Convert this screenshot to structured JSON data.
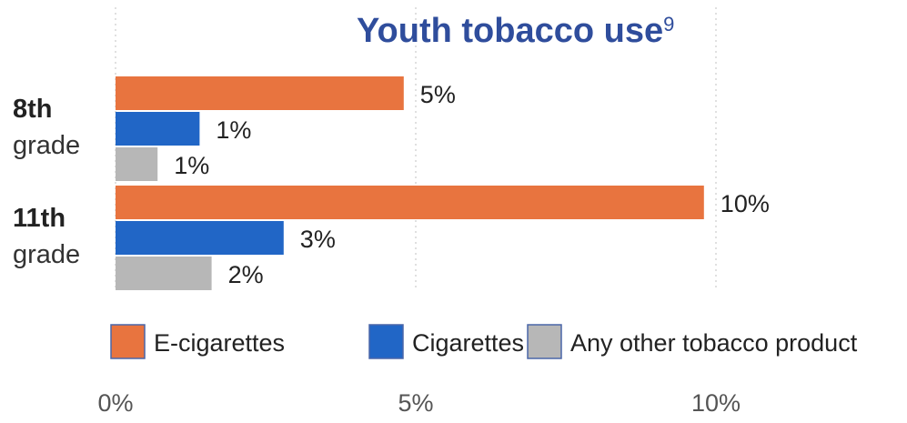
{
  "chart_data": {
    "type": "bar",
    "orientation": "horizontal",
    "title": "Youth tobacco use",
    "title_superscript": "9",
    "categories": [
      {
        "line1": "8th",
        "line2": "grade"
      },
      {
        "line1": "11th",
        "line2": "grade"
      }
    ],
    "series": [
      {
        "name": "E-cigarettes",
        "color": "#e8743f",
        "values": [
          4.8,
          9.8
        ],
        "labels": [
          "5%",
          "10%"
        ]
      },
      {
        "name": "Cigarettes",
        "color": "#2166c6",
        "values": [
          1.4,
          2.8
        ],
        "labels": [
          "1%",
          "3%"
        ]
      },
      {
        "name": "Any other tobacco product",
        "color": "#b7b7b7",
        "values": [
          0.7,
          1.6
        ],
        "labels": [
          "1%",
          "2%"
        ]
      }
    ],
    "xlim": [
      0,
      12.5
    ],
    "xticks": [
      0,
      5,
      10
    ],
    "xtick_labels": [
      "0%",
      "5%",
      "10%"
    ],
    "grid": true,
    "legend_position": "bottom"
  }
}
